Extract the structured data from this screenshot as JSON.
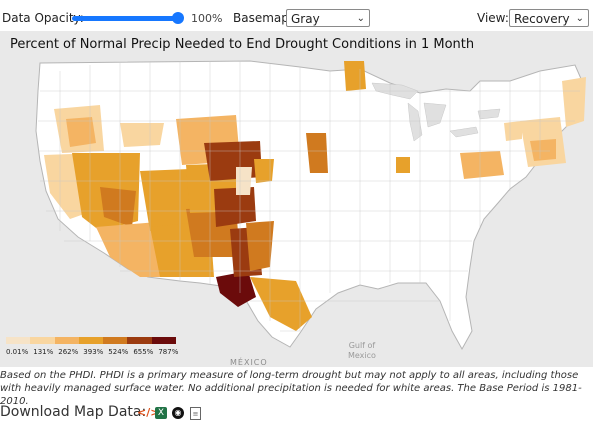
{
  "toolbar": {
    "opacity_label": "Data Opacity:",
    "opacity_value": "100%",
    "basemap_label": "Basemap:",
    "basemap_value": "Gray",
    "view_label": "View:",
    "view_value": "Recovery"
  },
  "map": {
    "title": "Percent of Normal Precip Needed to End Drought Conditions in 1 Month",
    "mexico_label": "MÉXICO",
    "gulf_label_1": "Gulf of",
    "gulf_label_2": "Mexico"
  },
  "legend": {
    "labels": [
      "0.01%",
      "131%",
      "262%",
      "393%",
      "524%",
      "655%",
      "787%"
    ],
    "colors": [
      "#f6e3c7",
      "#f9d6a0",
      "#f4b463",
      "#e7a12b",
      "#d07a1f",
      "#9b3b10",
      "#6b0b0b"
    ]
  },
  "note": "Based on the PHDI. PHDI is a primary measure of long-term drought but may not apply to all areas, including those with heavily managed surface water. No additional precipitation is needed for white areas. The Base Period is 1981-2010.",
  "download": {
    "label": "Download Map Data:",
    "icons": [
      "code-icon",
      "excel-icon",
      "kml-icon",
      "document-icon"
    ]
  }
}
